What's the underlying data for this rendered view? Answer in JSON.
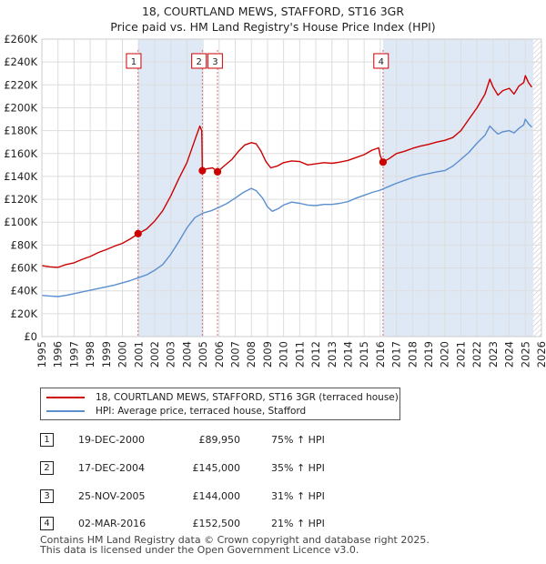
{
  "title_line1": "18, COURTLAND MEWS, STAFFORD, ST16 3GR",
  "title_line2": "Price paid vs. HM Land Registry's House Price Index (HPI)",
  "colors": {
    "property": "#cc0000",
    "hpi": "#5b8fd0",
    "shade": "#dfe8f5",
    "grid": "#dddddd",
    "vline": "#d07070"
  },
  "chart_data": {
    "type": "line",
    "title": "Price paid vs. HM Land Registry's House Price Index (HPI)",
    "xlabel": "",
    "ylabel": "",
    "xlim": [
      1995,
      2026
    ],
    "ylim": [
      0,
      260000
    ],
    "x_ticks": [
      "1995",
      "1996",
      "1997",
      "1998",
      "1999",
      "2000",
      "2001",
      "2002",
      "2003",
      "2004",
      "2005",
      "2006",
      "2007",
      "2008",
      "2009",
      "2010",
      "2011",
      "2012",
      "2013",
      "2014",
      "2015",
      "2016",
      "2017",
      "2018",
      "2019",
      "2020",
      "2021",
      "2022",
      "2023",
      "2024",
      "2025",
      "2026"
    ],
    "y_ticks": [
      {
        "value": 0,
        "label": "£0"
      },
      {
        "value": 20000,
        "label": "£20K"
      },
      {
        "value": 40000,
        "label": "£40K"
      },
      {
        "value": 60000,
        "label": "£60K"
      },
      {
        "value": 80000,
        "label": "£80K"
      },
      {
        "value": 100000,
        "label": "£100K"
      },
      {
        "value": 120000,
        "label": "£120K"
      },
      {
        "value": 140000,
        "label": "£140K"
      },
      {
        "value": 160000,
        "label": "£160K"
      },
      {
        "value": 180000,
        "label": "£180K"
      },
      {
        "value": 200000,
        "label": "£200K"
      },
      {
        "value": 220000,
        "label": "£220K"
      },
      {
        "value": 240000,
        "label": "£240K"
      },
      {
        "value": 260000,
        "label": "£260K"
      }
    ],
    "shaded_ranges": [
      [
        2000.97,
        2004.96
      ],
      [
        2016.17,
        2025.5
      ]
    ],
    "hatched_range": [
      2025.5,
      2026
    ],
    "series": [
      {
        "name": "18, COURTLAND MEWS, STAFFORD, ST16 3GR (terraced house)",
        "color": "#cc0000",
        "points": [
          [
            1995.0,
            62000
          ],
          [
            1995.5,
            61000
          ],
          [
            1996.0,
            60500
          ],
          [
            1996.5,
            63000
          ],
          [
            1997.0,
            64500
          ],
          [
            1997.5,
            67500
          ],
          [
            1998.0,
            70000
          ],
          [
            1998.5,
            73500
          ],
          [
            1999.0,
            76000
          ],
          [
            1999.5,
            79000
          ],
          [
            2000.0,
            81500
          ],
          [
            2000.5,
            85500
          ],
          [
            2000.97,
            89950
          ],
          [
            2001.5,
            94000
          ],
          [
            2002.0,
            101000
          ],
          [
            2002.5,
            110000
          ],
          [
            2003.0,
            123000
          ],
          [
            2003.5,
            138000
          ],
          [
            2004.0,
            152000
          ],
          [
            2004.5,
            172000
          ],
          [
            2004.8,
            184000
          ],
          [
            2004.92,
            180000
          ],
          [
            2004.96,
            145000
          ],
          [
            2005.2,
            146500
          ],
          [
            2005.6,
            147500
          ],
          [
            2005.9,
            144000
          ],
          [
            2006.3,
            149000
          ],
          [
            2006.8,
            155000
          ],
          [
            2007.2,
            162000
          ],
          [
            2007.6,
            167500
          ],
          [
            2008.0,
            169500
          ],
          [
            2008.3,
            168500
          ],
          [
            2008.6,
            162000
          ],
          [
            2008.9,
            153000
          ],
          [
            2009.2,
            147500
          ],
          [
            2009.6,
            149000
          ],
          [
            2010.0,
            152000
          ],
          [
            2010.5,
            153500
          ],
          [
            2011.0,
            153000
          ],
          [
            2011.5,
            150000
          ],
          [
            2012.0,
            151000
          ],
          [
            2012.5,
            152000
          ],
          [
            2013.0,
            151500
          ],
          [
            2013.5,
            152500
          ],
          [
            2014.0,
            154000
          ],
          [
            2014.5,
            156500
          ],
          [
            2015.0,
            159000
          ],
          [
            2015.5,
            163000
          ],
          [
            2015.9,
            165000
          ],
          [
            2016.0,
            158000
          ],
          [
            2016.17,
            152500
          ],
          [
            2016.6,
            156000
          ],
          [
            2017.0,
            160000
          ],
          [
            2017.5,
            162000
          ],
          [
            2018.0,
            164500
          ],
          [
            2018.5,
            166500
          ],
          [
            2019.0,
            168000
          ],
          [
            2019.5,
            170000
          ],
          [
            2020.0,
            171500
          ],
          [
            2020.5,
            174000
          ],
          [
            2021.0,
            180000
          ],
          [
            2021.5,
            190000
          ],
          [
            2022.0,
            200000
          ],
          [
            2022.5,
            212000
          ],
          [
            2022.8,
            225000
          ],
          [
            2023.0,
            218000
          ],
          [
            2023.3,
            211000
          ],
          [
            2023.6,
            215000
          ],
          [
            2024.0,
            217000
          ],
          [
            2024.3,
            212000
          ],
          [
            2024.6,
            219000
          ],
          [
            2024.9,
            222000
          ],
          [
            2025.0,
            228000
          ],
          [
            2025.2,
            222000
          ],
          [
            2025.4,
            218000
          ]
        ]
      },
      {
        "name": "HPI: Average price, terraced house, Stafford",
        "color": "#5b8fd0",
        "points": [
          [
            1995.0,
            36000
          ],
          [
            1995.5,
            35500
          ],
          [
            1996.0,
            35000
          ],
          [
            1996.5,
            36000
          ],
          [
            1997.0,
            37500
          ],
          [
            1997.5,
            39000
          ],
          [
            1998.0,
            40500
          ],
          [
            1998.5,
            42000
          ],
          [
            1999.0,
            43500
          ],
          [
            1999.5,
            45000
          ],
          [
            2000.0,
            47000
          ],
          [
            2000.5,
            49000
          ],
          [
            2001.0,
            51500
          ],
          [
            2001.5,
            54000
          ],
          [
            2002.0,
            58000
          ],
          [
            2002.5,
            63000
          ],
          [
            2003.0,
            72000
          ],
          [
            2003.5,
            83000
          ],
          [
            2004.0,
            95000
          ],
          [
            2004.5,
            104000
          ],
          [
            2005.0,
            108000
          ],
          [
            2005.5,
            110000
          ],
          [
            2006.0,
            113000
          ],
          [
            2006.5,
            116500
          ],
          [
            2007.0,
            121000
          ],
          [
            2007.5,
            126000
          ],
          [
            2008.0,
            129500
          ],
          [
            2008.3,
            127500
          ],
          [
            2008.7,
            121000
          ],
          [
            2009.0,
            113500
          ],
          [
            2009.3,
            109500
          ],
          [
            2009.7,
            112000
          ],
          [
            2010.0,
            115000
          ],
          [
            2010.5,
            117500
          ],
          [
            2011.0,
            116500
          ],
          [
            2011.5,
            115000
          ],
          [
            2012.0,
            114500
          ],
          [
            2012.5,
            115500
          ],
          [
            2013.0,
            115500
          ],
          [
            2013.5,
            116500
          ],
          [
            2014.0,
            118000
          ],
          [
            2014.5,
            121000
          ],
          [
            2015.0,
            123500
          ],
          [
            2015.5,
            126000
          ],
          [
            2016.0,
            128000
          ],
          [
            2016.5,
            131000
          ],
          [
            2017.0,
            134000
          ],
          [
            2017.5,
            136500
          ],
          [
            2018.0,
            139000
          ],
          [
            2018.5,
            141000
          ],
          [
            2019.0,
            142500
          ],
          [
            2019.5,
            144000
          ],
          [
            2020.0,
            145000
          ],
          [
            2020.5,
            149000
          ],
          [
            2021.0,
            155000
          ],
          [
            2021.5,
            161000
          ],
          [
            2022.0,
            169000
          ],
          [
            2022.5,
            176000
          ],
          [
            2022.8,
            184000
          ],
          [
            2023.0,
            181000
          ],
          [
            2023.3,
            177000
          ],
          [
            2023.6,
            179000
          ],
          [
            2024.0,
            180000
          ],
          [
            2024.3,
            178000
          ],
          [
            2024.6,
            182000
          ],
          [
            2024.9,
            185000
          ],
          [
            2025.0,
            190000
          ],
          [
            2025.2,
            186000
          ],
          [
            2025.4,
            183000
          ]
        ]
      }
    ],
    "sale_markers": [
      {
        "label": "1",
        "x": 2000.97,
        "y": 89950
      },
      {
        "label": "2",
        "x": 2004.96,
        "y": 145000
      },
      {
        "label": "3",
        "x": 2005.9,
        "y": 144000
      },
      {
        "label": "4",
        "x": 2016.17,
        "y": 152500
      }
    ]
  },
  "legend": {
    "property_label": "18, COURTLAND MEWS, STAFFORD, ST16 3GR (terraced house)",
    "hpi_label": "HPI: Average price, terraced house, Stafford"
  },
  "sales": [
    {
      "num": "1",
      "date": "19-DEC-2000",
      "price": "£89,950",
      "hpi": "75% ↑ HPI"
    },
    {
      "num": "2",
      "date": "17-DEC-2004",
      "price": "£145,000",
      "hpi": "35% ↑ HPI"
    },
    {
      "num": "3",
      "date": "25-NOV-2005",
      "price": "£144,000",
      "hpi": "31% ↑ HPI"
    },
    {
      "num": "4",
      "date": "02-MAR-2016",
      "price": "£152,500",
      "hpi": "21% ↑ HPI"
    }
  ],
  "footer_line1": "Contains HM Land Registry data © Crown copyright and database right 2025.",
  "footer_line2": "This data is licensed under the Open Government Licence v3.0."
}
